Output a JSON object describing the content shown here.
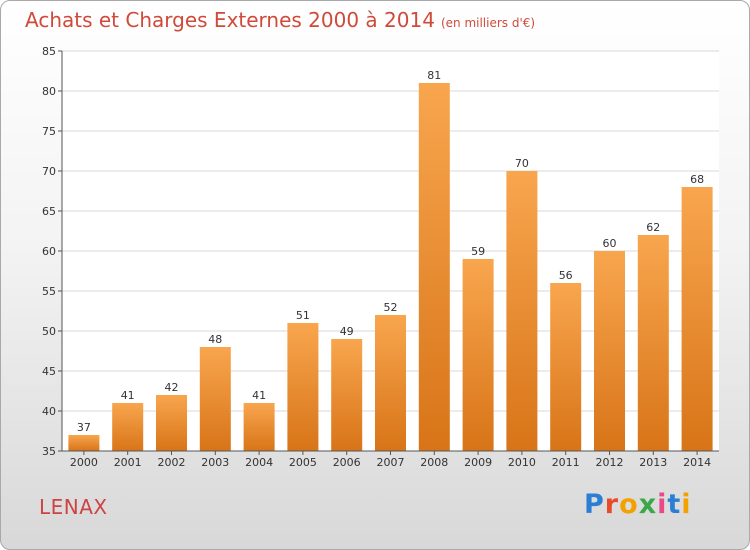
{
  "title": "Achats et Charges Externes 2000 à 2014",
  "subtitle": "(en milliers d'€)",
  "commune": "LENAX",
  "logo": {
    "text": "Proxiti",
    "colors": [
      "#2a7fd4",
      "#e84a2a",
      "#f2a100",
      "#3aa84a",
      "#e84a8a",
      "#2a7fd4",
      "#f2a100"
    ]
  },
  "colors": {
    "bar_top": "#f8a64e",
    "bar_bottom": "#d87418",
    "title": "#d04a3a",
    "grid": "#d8d8d8"
  },
  "chart_data": {
    "type": "bar",
    "categories": [
      "2000",
      "2001",
      "2002",
      "2003",
      "2004",
      "2005",
      "2006",
      "2007",
      "2008",
      "2009",
      "2010",
      "2011",
      "2012",
      "2013",
      "2014"
    ],
    "values": [
      37,
      41,
      42,
      48,
      41,
      51,
      49,
      52,
      81,
      59,
      70,
      56,
      60,
      62,
      68
    ],
    "ylim": [
      35,
      85
    ],
    "yticks": [
      35,
      40,
      45,
      50,
      55,
      60,
      65,
      70,
      75,
      80,
      85
    ],
    "grid": true
  }
}
